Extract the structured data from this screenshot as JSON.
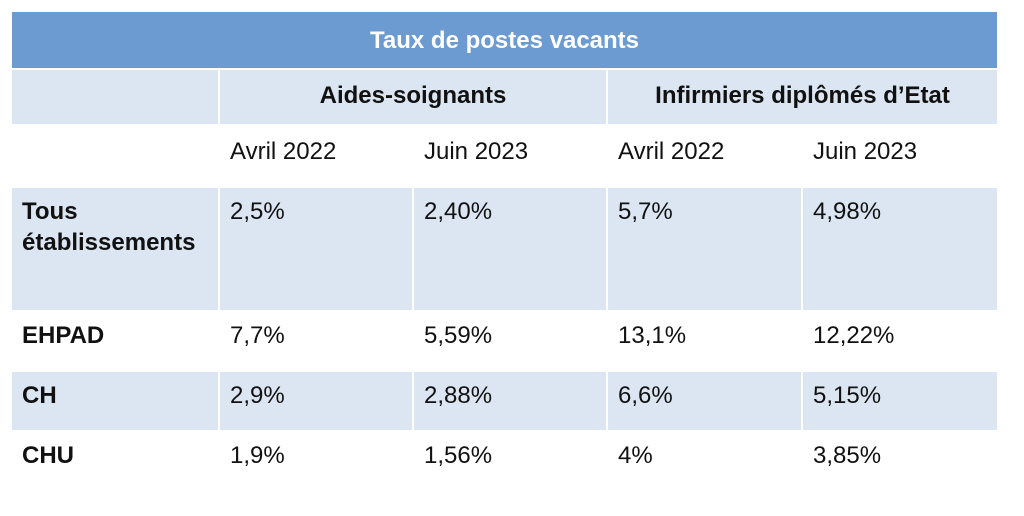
{
  "table": {
    "title": "Taux de postes vacants",
    "groups": [
      "Aides-soignants",
      "Infirmiers diplômés d’Etat"
    ],
    "periods": [
      "Avril 2022",
      "Juin 2023",
      "Avril 2022",
      "Juin 2023"
    ],
    "rows": [
      {
        "label": "Tous établissements",
        "values": [
          "2,5%",
          "2,40%",
          "5,7%",
          "4,98%"
        ]
      },
      {
        "label": "EHPAD",
        "values": [
          "7,7%",
          "5,59%",
          "13,1%",
          "12,22%"
        ]
      },
      {
        "label": "CH",
        "values": [
          "2,9%",
          "2,88%",
          "6,6%",
          "5,15%"
        ]
      },
      {
        "label": "CHU",
        "values": [
          "1,9%",
          "1,56%",
          "4%",
          "3,85%"
        ]
      }
    ]
  },
  "colors": {
    "header": "#6b9bd1",
    "band": "#dce6f2",
    "white": "#ffffff"
  }
}
